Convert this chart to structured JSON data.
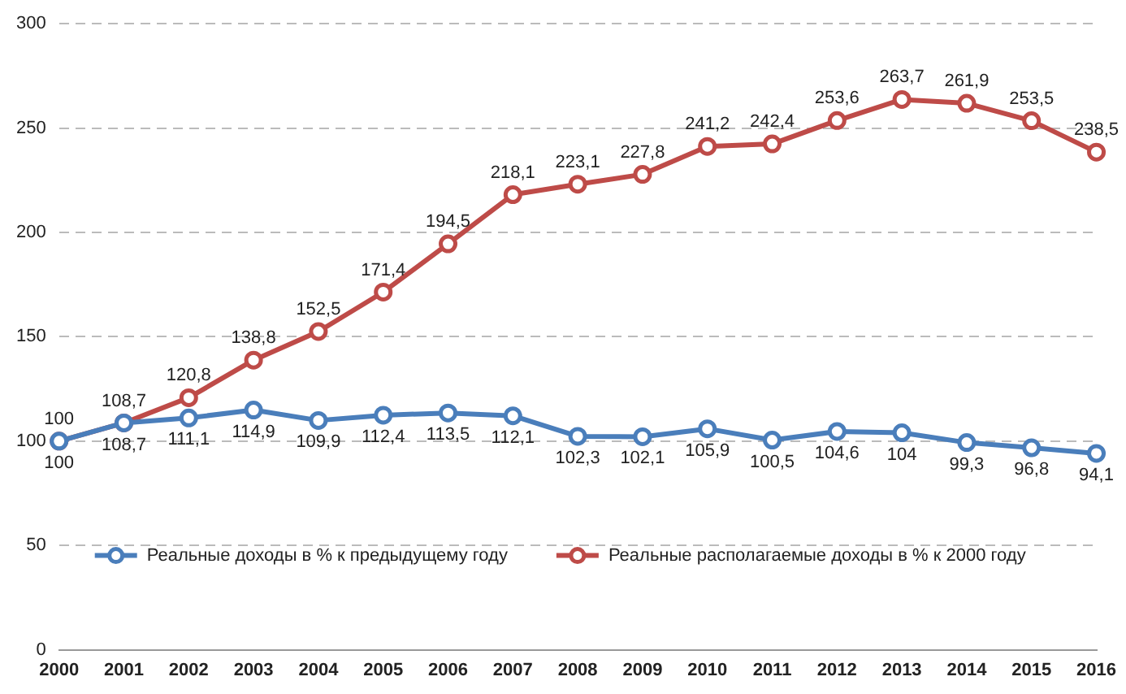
{
  "chart_data": {
    "type": "line",
    "categories": [
      "2000",
      "2001",
      "2002",
      "2003",
      "2004",
      "2005",
      "2006",
      "2007",
      "2008",
      "2009",
      "2010",
      "2011",
      "2012",
      "2013",
      "2014",
      "2015",
      "2016"
    ],
    "series": [
      {
        "name": "Реальные доходы в % к предыдущему году",
        "color": "#4a7ebb",
        "values": [
          100,
          108.7,
          111.1,
          114.9,
          109.9,
          112.4,
          113.5,
          112.1,
          102.3,
          102.1,
          105.9,
          100.5,
          104.6,
          104,
          99.3,
          96.8,
          94.1
        ],
        "value_labels": [
          "100",
          "108,7",
          "111,1",
          "114,9",
          "109,9",
          "112,4",
          "113,5",
          "112,1",
          "102,3",
          "102,1",
          "105,9",
          "100,5",
          "104,6",
          "104",
          "99,3",
          "96,8",
          "94,1"
        ]
      },
      {
        "name": "Реальные располагаемые доходы в % к 2000 году",
        "color": "#be4b48",
        "values": [
          100,
          108.7,
          120.8,
          138.8,
          152.5,
          171.4,
          194.5,
          218.1,
          223.1,
          227.8,
          241.2,
          242.4,
          253.6,
          263.7,
          261.9,
          253.5,
          238.5
        ],
        "value_labels": [
          "100",
          "108,7",
          "120,8",
          "138,8",
          "152,5",
          "171,4",
          "194,5",
          "218,1",
          "223,1",
          "227,8",
          "241,2",
          "242,4",
          "253,6",
          "263,7",
          "261,9",
          "253,5",
          "238,5"
        ]
      }
    ],
    "ylim": [
      0,
      300
    ],
    "yticks": [
      0,
      50,
      100,
      150,
      200,
      250,
      300
    ],
    "grid": "y",
    "legend": "bottom",
    "marker": "circle",
    "line_style": "solid"
  }
}
